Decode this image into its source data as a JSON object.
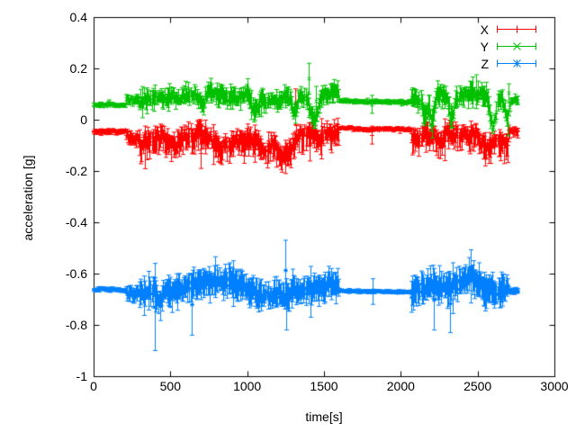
{
  "chart_data": {
    "type": "line-errorbars",
    "title": "",
    "xlabel": "time[s]",
    "ylabel": "acceleration [g]",
    "xlim": [
      0,
      3000
    ],
    "ylim": [
      -1,
      0.4
    ],
    "xticks": [
      {
        "v": 0,
        "label": "0"
      },
      {
        "v": 500,
        "label": "500"
      },
      {
        "v": 1000,
        "label": "1000"
      },
      {
        "v": 1500,
        "label": "1500"
      },
      {
        "v": 2000,
        "label": "2000"
      },
      {
        "v": 2500,
        "label": "2500"
      },
      {
        "v": 3000,
        "label": "3000"
      }
    ],
    "yticks": [
      {
        "v": 0.4,
        "label": "0.4"
      },
      {
        "v": 0.2,
        "label": "0.2"
      },
      {
        "v": 0,
        "label": "0"
      },
      {
        "v": -0.2,
        "label": "-0.2"
      },
      {
        "v": -0.4,
        "label": "-0.4"
      },
      {
        "v": -0.6,
        "label": "-0.6"
      },
      {
        "v": -0.8,
        "label": "-0.8"
      },
      {
        "v": -1,
        "label": "-1"
      }
    ],
    "grid": false,
    "legend_position": "top-right-inside",
    "background": "#ffffff",
    "axis_color": "#000000",
    "text_color": "#000000",
    "sampling": {
      "seed": 7,
      "step_s": 6,
      "t_start": 0,
      "t_end": 2760
    },
    "series": [
      {
        "name": "X",
        "color": "#ff0000",
        "marker": "plus",
        "errorbar_asymmetry": [
          0.55,
          1.45
        ],
        "baseline_segments": [
          {
            "t0": 0,
            "t1": 210,
            "mean": -0.043,
            "noise": 0.004,
            "errorbar": 0.007
          },
          {
            "t0": 210,
            "t1": 300,
            "mean": -0.05,
            "noise": 0.012,
            "errorbar": 0.02
          },
          {
            "t0": 300,
            "t1": 1600,
            "mean": -0.058,
            "noise": 0.02,
            "errorbar": 0.036
          },
          {
            "t0": 1600,
            "t1": 2070,
            "mean": -0.033,
            "noise": 0.003,
            "errorbar": 0.006
          },
          {
            "t0": 2070,
            "t1": 2700,
            "mean": -0.055,
            "noise": 0.02,
            "errorbar": 0.036
          },
          {
            "t0": 2700,
            "t1": 2761,
            "mean": -0.035,
            "noise": 0.006,
            "errorbar": 0.014
          }
        ],
        "bumps": [
          {
            "t": 520,
            "halfwidth": 30,
            "dy": -0.04
          },
          {
            "t": 820,
            "halfwidth": 50,
            "dy": -0.05
          },
          {
            "t": 1100,
            "halfwidth": 25,
            "dy": -0.04
          },
          {
            "t": 1250,
            "halfwidth": 40,
            "dy": -0.06
          },
          {
            "t": 2250,
            "halfwidth": 30,
            "dy": -0.04
          },
          {
            "t": 2550,
            "halfwidth": 40,
            "dy": -0.05
          }
        ],
        "spikes": [
          {
            "t": 700,
            "lo": -0.19,
            "hi": -0.07
          },
          {
            "t": 980,
            "lo": -0.17,
            "hi": -0.06
          },
          {
            "t": 1250,
            "lo": -0.21,
            "hi": -0.08
          },
          {
            "t": 1310,
            "lo": -0.02,
            "hi": 0.12
          },
          {
            "t": 1810,
            "lo": -0.095,
            "hi": -0.025
          },
          {
            "t": 2550,
            "lo": -0.18,
            "hi": -0.05
          },
          {
            "t": 2650,
            "lo": -0.16,
            "hi": -0.05
          }
        ]
      },
      {
        "name": "Y",
        "color": "#00c000",
        "marker": "times",
        "errorbar_asymmetry": [
          1.1,
          0.9
        ],
        "baseline_segments": [
          {
            "t0": 0,
            "t1": 210,
            "mean": 0.056,
            "noise": 0.004,
            "errorbar": 0.006
          },
          {
            "t0": 210,
            "t1": 300,
            "mean": 0.085,
            "noise": 0.01,
            "errorbar": 0.015
          },
          {
            "t0": 300,
            "t1": 1600,
            "mean": 0.088,
            "noise": 0.016,
            "errorbar": 0.027
          },
          {
            "t0": 1600,
            "t1": 2070,
            "mean": 0.071,
            "noise": 0.003,
            "errorbar": 0.006
          },
          {
            "t0": 2070,
            "t1": 2700,
            "mean": 0.084,
            "noise": 0.018,
            "errorbar": 0.03
          },
          {
            "t0": 2700,
            "t1": 2761,
            "mean": 0.08,
            "noise": 0.006,
            "errorbar": 0.012
          }
        ],
        "bumps": [
          {
            "t": 700,
            "halfwidth": 20,
            "dy": -0.05
          },
          {
            "t": 1050,
            "halfwidth": 20,
            "dy": -0.05
          },
          {
            "t": 1310,
            "halfwidth": 15,
            "dy": -0.07
          },
          {
            "t": 1430,
            "halfwidth": 25,
            "dy": -0.09
          },
          {
            "t": 2150,
            "halfwidth": 15,
            "dy": -0.06
          },
          {
            "t": 2200,
            "halfwidth": 18,
            "dy": -0.1
          },
          {
            "t": 2330,
            "halfwidth": 15,
            "dy": -0.09
          },
          {
            "t": 2600,
            "halfwidth": 15,
            "dy": -0.1
          },
          {
            "t": 2690,
            "halfwidth": 12,
            "dy": -0.08
          }
        ],
        "spikes": [
          {
            "t": 600,
            "lo": 0.09,
            "hi": 0.15
          },
          {
            "t": 1000,
            "lo": 0.09,
            "hi": 0.16
          },
          {
            "t": 1400,
            "lo": 0.1,
            "hi": 0.22
          },
          {
            "t": 1450,
            "lo": 0.02,
            "hi": 0.13
          },
          {
            "t": 1810,
            "lo": 0.025,
            "hi": 0.095
          },
          {
            "t": 2450,
            "lo": 0.08,
            "hi": 0.15
          },
          {
            "t": 2700,
            "lo": 0.07,
            "hi": 0.14
          }
        ]
      },
      {
        "name": "Z",
        "color": "#0080ff",
        "marker": "asterisk",
        "errorbar_asymmetry": [
          1,
          1
        ],
        "baseline_segments": [
          {
            "t0": 0,
            "t1": 210,
            "mean": -0.662,
            "noise": 0.003,
            "errorbar": 0.005
          },
          {
            "t0": 210,
            "t1": 300,
            "mean": -0.663,
            "noise": 0.012,
            "errorbar": 0.022
          },
          {
            "t0": 300,
            "t1": 1600,
            "mean": -0.662,
            "noise": 0.018,
            "errorbar": 0.044
          },
          {
            "t0": 1600,
            "t1": 2070,
            "mean": -0.668,
            "noise": 0.002,
            "errorbar": 0.004
          },
          {
            "t0": 2070,
            "t1": 2700,
            "mean": -0.658,
            "noise": 0.02,
            "errorbar": 0.048
          },
          {
            "t0": 2700,
            "t1": 2761,
            "mean": -0.665,
            "noise": 0.005,
            "errorbar": 0.01
          }
        ],
        "bumps": [
          {
            "t": 430,
            "halfwidth": 15,
            "dy": -0.04
          },
          {
            "t": 830,
            "halfwidth": 60,
            "dy": 0.03
          },
          {
            "t": 1255,
            "halfwidth": 20,
            "dy": -0.04
          },
          {
            "t": 2450,
            "halfwidth": 40,
            "dy": 0.02
          }
        ],
        "spikes": [
          {
            "t": 400,
            "lo": -0.9,
            "hi": -0.56
          },
          {
            "t": 640,
            "lo": -0.84,
            "hi": -0.6
          },
          {
            "t": 1250,
            "lo": -0.7,
            "hi": -0.47
          },
          {
            "t": 1256,
            "lo": -0.82,
            "hi": -0.62
          },
          {
            "t": 1816,
            "lo": -0.72,
            "hi": -0.62
          },
          {
            "t": 2215,
            "lo": -0.82,
            "hi": -0.58
          },
          {
            "t": 2320,
            "lo": -0.83,
            "hi": -0.6
          }
        ]
      }
    ]
  }
}
